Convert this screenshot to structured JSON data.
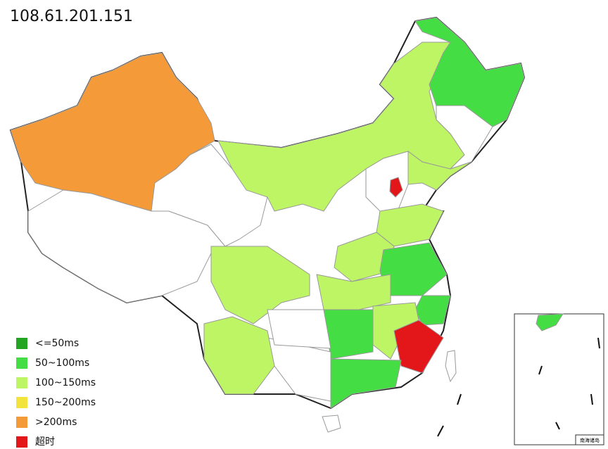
{
  "header": {
    "title": "108.61.201.151"
  },
  "legend": [
    {
      "label": "<=50ms",
      "color": "#22a522"
    },
    {
      "label": "50~100ms",
      "color": "#44dd44"
    },
    {
      "label": "100~150ms",
      "color": "#bef565"
    },
    {
      "label": "150~200ms",
      "color": "#f2e43c"
    },
    {
      "label": ">200ms",
      "color": "#f59a38"
    },
    {
      "label": "超时",
      "color": "#e3161a"
    }
  ],
  "inset": {
    "title": "南海诸岛"
  }
}
